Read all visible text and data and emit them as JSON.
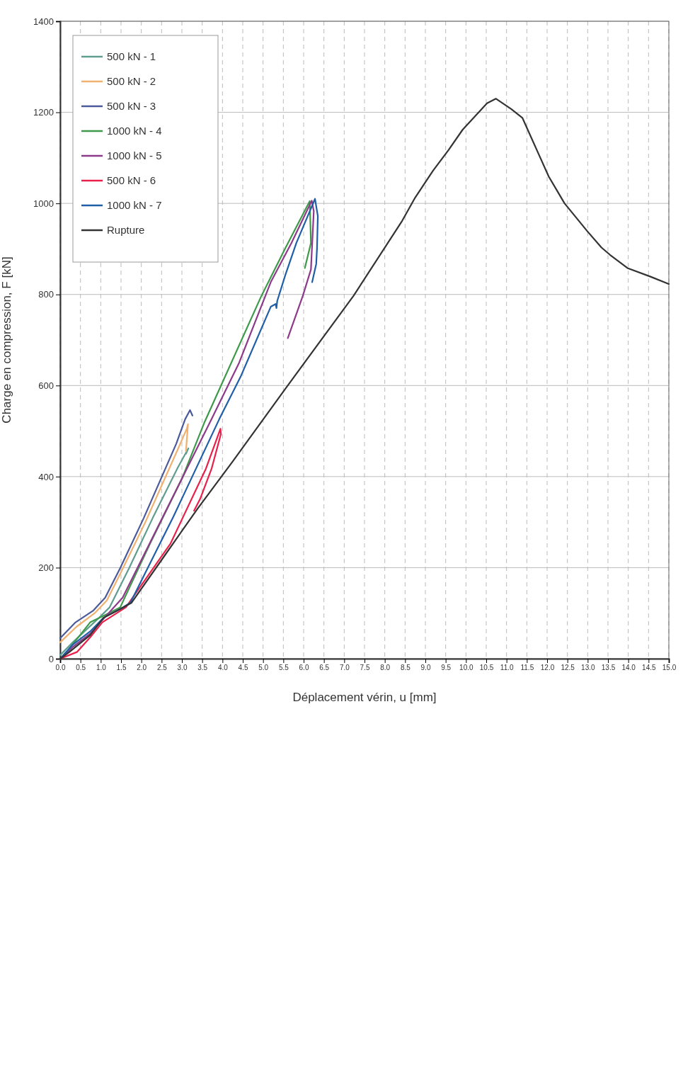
{
  "chart_data": {
    "type": "line",
    "xlabel": "Déplacement vérin, u [mm]",
    "ylabel": "Charge en compression, F [kN]",
    "xlim": [
      0,
      15
    ],
    "ylim": [
      0,
      1400
    ],
    "xticks": [
      {
        "value": 0,
        "label": "0.0"
      },
      {
        "value": 0.5,
        "label": "0.5"
      },
      {
        "value": 1,
        "label": "1.0"
      },
      {
        "value": 1.5,
        "label": "1.5"
      },
      {
        "value": 2,
        "label": "2.0"
      },
      {
        "value": 2.5,
        "label": "2.5"
      },
      {
        "value": 3,
        "label": "3.0"
      },
      {
        "value": 3.5,
        "label": "3.5"
      },
      {
        "value": 4,
        "label": "4.0"
      },
      {
        "value": 4.5,
        "label": "4.5"
      },
      {
        "value": 5,
        "label": "5.0"
      },
      {
        "value": 5.5,
        "label": "5.5"
      },
      {
        "value": 6,
        "label": "6.0"
      },
      {
        "value": 6.5,
        "label": "6.5"
      },
      {
        "value": 7,
        "label": "7.0"
      },
      {
        "value": 7.5,
        "label": "7.5"
      },
      {
        "value": 8,
        "label": "8.0"
      },
      {
        "value": 8.5,
        "label": "8.5"
      },
      {
        "value": 9,
        "label": "9.0"
      },
      {
        "value": 9.5,
        "label": "9.5"
      },
      {
        "value": 10,
        "label": "10.0"
      },
      {
        "value": 10.5,
        "label": "10.5"
      },
      {
        "value": 11,
        "label": "11.0"
      },
      {
        "value": 11.5,
        "label": "11.5"
      },
      {
        "value": 12,
        "label": "12.0"
      },
      {
        "value": 12.5,
        "label": "12.5"
      },
      {
        "value": 13,
        "label": "13.0"
      },
      {
        "value": 13.5,
        "label": "13.5"
      },
      {
        "value": 14,
        "label": "14.0"
      },
      {
        "value": 14.5,
        "label": "14.5"
      },
      {
        "value": 15,
        "label": "15.0"
      }
    ],
    "yticks": [
      0,
      200,
      400,
      600,
      800,
      1000,
      1200,
      1400
    ],
    "grid": true,
    "legend": "top left",
    "marker": "none",
    "line_style": "solid",
    "series": [
      {
        "name": "500 kN - 1",
        "color": "#5f9e8f",
        "x": [
          0,
          0.31,
          0.96,
          1.22,
          1.7,
          2.28,
          2.9,
          3.16,
          3.1
        ],
        "values": [
          8,
          36,
          90,
          113,
          199,
          309,
          420,
          462,
          450
        ]
      },
      {
        "name": "500 kN - 2",
        "color": "#f0b070",
        "x": [
          0,
          0.4,
          0.85,
          1.15,
          1.5,
          2.1,
          2.9,
          3.12,
          3.15,
          3.1
        ],
        "values": [
          36,
          70,
          100,
          128,
          190,
          300,
          460,
          505,
          515,
          456
        ]
      },
      {
        "name": "500 kN - 3",
        "color": "#4a5a9a",
        "x": [
          0,
          0.38,
          0.82,
          1.11,
          1.48,
          2.06,
          2.86,
          3.08,
          3.2,
          3.26
        ],
        "values": [
          45,
          80,
          106,
          134,
          199,
          309,
          472,
          526,
          546,
          534
        ]
      },
      {
        "name": "1000 kN - 4",
        "color": "#3e9a4a",
        "x": [
          0,
          0.16,
          0.74,
          1.2,
          1.48,
          2.2,
          3.0,
          3.56,
          4.96,
          5.55,
          6.15,
          6.18,
          6.03
        ],
        "values": [
          0,
          15,
          80,
          100,
          113,
          250,
          395,
          520,
          797,
          902,
          1005,
          913,
          858
        ]
      },
      {
        "name": "1000 kN - 5",
        "color": "#8e3a8a",
        "x": [
          0,
          0.3,
          0.74,
          1.07,
          1.54,
          2.5,
          3.73,
          4.41,
          5.19,
          5.7,
          6.2,
          6.25,
          6.18,
          5.98,
          5.61
        ],
        "values": [
          0,
          25,
          55,
          88,
          134,
          306,
          526,
          650,
          827,
          913,
          1006,
          983,
          855,
          797,
          704
        ]
      },
      {
        "name": "500 kN - 6",
        "color": "#e8204a",
        "x": [
          0,
          0.42,
          0.74,
          1.04,
          1.62,
          2.72,
          3.59,
          3.95,
          3.96,
          3.73,
          3.45,
          3.3
        ],
        "values": [
          0,
          15,
          47,
          80,
          113,
          253,
          417,
          505,
          493,
          417,
          351,
          325
        ]
      },
      {
        "name": "1000 kN - 7",
        "color": "#1f5fa8",
        "x": [
          0,
          0.3,
          0.74,
          1.07,
          1.5,
          1.73,
          2.79,
          3.92,
          4.46,
          5.19,
          5.31,
          5.33,
          5.35,
          5.55,
          5.82,
          6.1,
          6.28,
          6.35,
          6.33,
          6.31,
          6.21
        ],
        "values": [
          0,
          30,
          60,
          90,
          110,
          123,
          312,
          526,
          622,
          773,
          779,
          770,
          786,
          843,
          913,
          972,
          1010,
          972,
          902,
          867,
          827
        ]
      },
      {
        "name": "Rupture",
        "color": "#333333",
        "x": [
          0,
          0.23,
          0.74,
          1.07,
          1.5,
          1.76,
          2.5,
          3.39,
          4.25,
          5.55,
          7.23,
          8.43,
          8.75,
          9.19,
          9.57,
          9.92,
          10.52,
          10.74,
          11.12,
          11.39,
          12.04,
          12.43,
          12.99,
          13.34,
          13.55,
          13.98,
          14.55,
          15.0
        ],
        "values": [
          0,
          15,
          52,
          90,
          110,
          123,
          217,
          330,
          433,
          593,
          797,
          962,
          1013,
          1072,
          1117,
          1162,
          1220,
          1230,
          1207,
          1188,
          1059,
          1000,
          939,
          903,
          887,
          858,
          839,
          823
        ]
      }
    ]
  }
}
